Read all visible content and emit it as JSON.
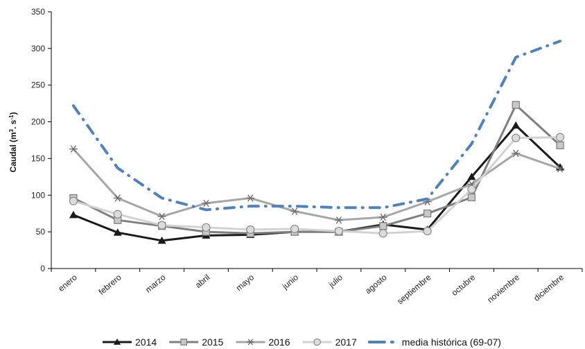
{
  "chart_data": {
    "type": "line",
    "categories": [
      "enero",
      "febrero",
      "marzo",
      "abril",
      "mayo",
      "junio",
      "julio",
      "agosto",
      "septiembre",
      "octubre",
      "noviembre",
      "diciembre"
    ],
    "ylabel_main": "Caudal (m",
    "ylabel_sup1": "3",
    "ylabel_mid": ". s",
    "ylabel_sup2": "-1",
    "ylabel_end": ")",
    "ylim": [
      0,
      350
    ],
    "yticks": [
      0,
      50,
      100,
      150,
      200,
      250,
      300,
      350
    ],
    "ytick_labels": [
      "0",
      "50",
      "100",
      "150",
      "200",
      "250",
      "300",
      "350"
    ],
    "grid": false,
    "legend_position": "bottom",
    "series": [
      {
        "name": "2014",
        "color": "#1a1a1a",
        "marker": "triangle",
        "dashed": false,
        "values": [
          73,
          49,
          38,
          45,
          46,
          50,
          50,
          60,
          53,
          125,
          195,
          138
        ]
      },
      {
        "name": "2015",
        "color": "#7f7f7f",
        "marker": "square",
        "dashed": false,
        "values": [
          96,
          66,
          58,
          50,
          48,
          50,
          50,
          58,
          75,
          97,
          223,
          168
        ]
      },
      {
        "name": "2016",
        "color": "#a6a6a6",
        "marker": "asterisk",
        "dashed": false,
        "values": [
          163,
          96,
          71,
          89,
          96,
          78,
          66,
          70,
          91,
          115,
          157,
          136
        ]
      },
      {
        "name": "2017",
        "color": "#d2d2d2",
        "marker": "circle",
        "dashed": false,
        "values": [
          92,
          74,
          59,
          56,
          53,
          54,
          51,
          48,
          51,
          108,
          178,
          179
        ]
      },
      {
        "name": "media histórica (69-07)",
        "color": "#4f81bd",
        "marker": "none",
        "dashed": true,
        "values": [
          222,
          137,
          96,
          80,
          85,
          85,
          83,
          83,
          95,
          170,
          288,
          310
        ]
      }
    ]
  }
}
